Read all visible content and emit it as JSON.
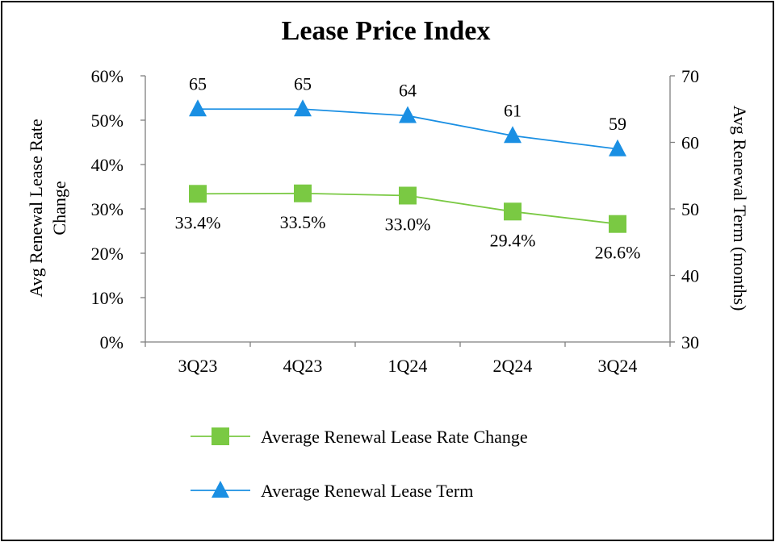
{
  "chart_data": {
    "type": "line",
    "title": "Lease Price Index",
    "categories": [
      "3Q23",
      "4Q23",
      "1Q24",
      "2Q24",
      "3Q24"
    ],
    "left_axis": {
      "title_line1": "Avg Renewal Lease Rate",
      "title_line2": "Change",
      "ylim": [
        0,
        60
      ],
      "ticks": [
        0,
        10,
        20,
        30,
        40,
        50,
        60
      ],
      "tick_labels": [
        "0%",
        "10%",
        "20%",
        "30%",
        "40%",
        "50%",
        "60%"
      ]
    },
    "right_axis": {
      "title": "Avg Renewal Term (months)",
      "ylim": [
        30,
        70
      ],
      "ticks": [
        30,
        40,
        50,
        60,
        70
      ],
      "tick_labels": [
        "30",
        "40",
        "50",
        "60",
        "70"
      ]
    },
    "series": [
      {
        "name": "Average Renewal Lease Rate Change",
        "axis": "left",
        "marker": "square",
        "color": "#7ac943",
        "values": [
          33.4,
          33.5,
          33.0,
          29.4,
          26.6
        ],
        "labels": [
          "33.4%",
          "33.5%",
          "33.0%",
          "29.4%",
          "26.6%"
        ]
      },
      {
        "name": "Average Renewal Lease Term",
        "axis": "right",
        "marker": "triangle",
        "color": "#1a8fe3",
        "values": [
          65,
          65,
          64,
          61,
          59
        ],
        "labels": [
          "65",
          "65",
          "64",
          "61",
          "59"
        ]
      }
    ],
    "grid": false,
    "legend": "bottom"
  }
}
